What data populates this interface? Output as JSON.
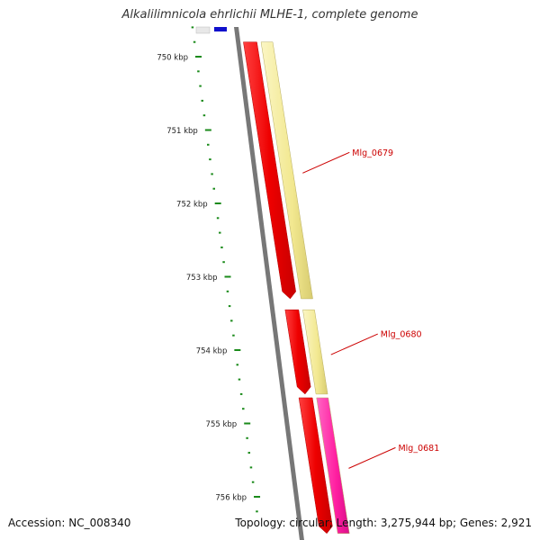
{
  "title": "Alkalilimnicola ehrlichii MLHE-1, complete genome",
  "accession_text": "Accession: NC_008340",
  "summary_text": "Topology: circular; Length: 3,275,944 bp; Genes: 2,921",
  "ruler": {
    "unit": "kbp",
    "labels": [
      {
        "kbp": 750,
        "text": "750 kbp"
      },
      {
        "kbp": 751,
        "text": "751 kbp"
      },
      {
        "kbp": 752,
        "text": "752 kbp"
      },
      {
        "kbp": 753,
        "text": "753 kbp"
      },
      {
        "kbp": 754,
        "text": "754 kbp"
      },
      {
        "kbp": 755,
        "text": "755 kbp"
      },
      {
        "kbp": 756,
        "text": "756 kbp"
      }
    ]
  },
  "genes": [
    {
      "name": "Mlg_0679",
      "label": "Mlg_0679",
      "color": "#ff0000",
      "start_kbp": 749.8,
      "end_kbp": 753.3,
      "strand": "+",
      "feature_color": "#f5eea0"
    },
    {
      "name": "Mlg_0680",
      "label": "Mlg_0680",
      "color": "#ff0000",
      "start_kbp": 753.45,
      "end_kbp": 754.6,
      "strand": "+",
      "feature_color": "#f5eea0"
    },
    {
      "name": "Mlg_0681",
      "label": "Mlg_0681",
      "color": "#ff0000",
      "start_kbp": 754.65,
      "end_kbp": 756.5,
      "strand": "+",
      "feature_color": "#ff2aa8"
    }
  ],
  "colors": {
    "backbone": "#777777",
    "tick": "#1a8a1a",
    "label": "#cc0000",
    "cds": "#ff0000",
    "upstream_gene": "#1010cc"
  }
}
